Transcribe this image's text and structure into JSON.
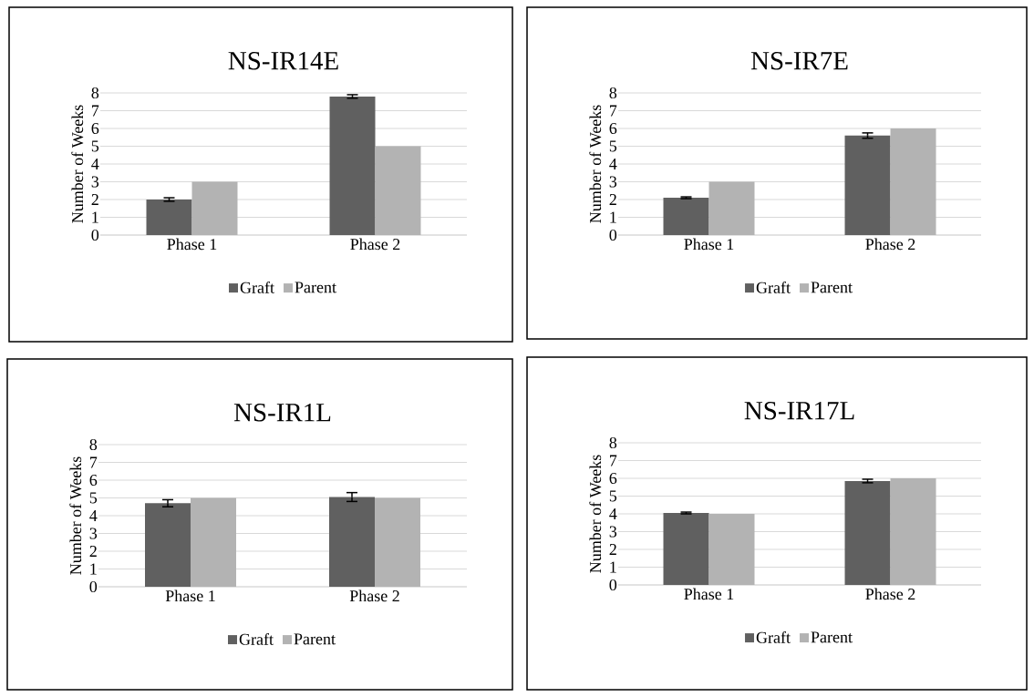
{
  "chart_data": [
    {
      "type": "bar",
      "title": "NS-IR14E",
      "ylabel": "Number of Weeks",
      "categories": [
        "Phase 1",
        "Phase 2"
      ],
      "ylim": [
        0,
        8
      ],
      "yticks": [
        0,
        1,
        2,
        3,
        4,
        5,
        6,
        7,
        8
      ],
      "grid": "y",
      "legend": "bottom",
      "series": [
        {
          "name": "Graft",
          "color": "#606060",
          "values": [
            2.0,
            7.8
          ],
          "errors": [
            0.1,
            0.1
          ]
        },
        {
          "name": "Parent",
          "color": "#b3b3b3",
          "values": [
            3.0,
            5.0
          ],
          "errors": [
            null,
            null
          ]
        }
      ]
    },
    {
      "type": "bar",
      "title": "NS-IR7E",
      "ylabel": "Number of Weeks",
      "categories": [
        "Phase 1",
        "Phase 2"
      ],
      "ylim": [
        0,
        8
      ],
      "yticks": [
        0,
        1,
        2,
        3,
        4,
        5,
        6,
        7,
        8
      ],
      "grid": "y",
      "legend": "bottom",
      "series": [
        {
          "name": "Graft",
          "color": "#606060",
          "values": [
            2.1,
            5.6
          ],
          "errors": [
            0.05,
            0.15
          ]
        },
        {
          "name": "Parent",
          "color": "#b3b3b3",
          "values": [
            3.0,
            6.0
          ],
          "errors": [
            null,
            null
          ]
        }
      ]
    },
    {
      "type": "bar",
      "title": "NS-IR1L",
      "ylabel": "Number of Weeks",
      "categories": [
        "Phase 1",
        "Phase 2"
      ],
      "ylim": [
        0,
        8
      ],
      "yticks": [
        0,
        1,
        2,
        3,
        4,
        5,
        6,
        7,
        8
      ],
      "grid": "y",
      "legend": "bottom",
      "series": [
        {
          "name": "Graft",
          "color": "#606060",
          "values": [
            4.7,
            5.05
          ],
          "errors": [
            0.2,
            0.25
          ]
        },
        {
          "name": "Parent",
          "color": "#b3b3b3",
          "values": [
            5.0,
            5.0
          ],
          "errors": [
            null,
            null
          ]
        }
      ]
    },
    {
      "type": "bar",
      "title": "NS-IR17L",
      "ylabel": "Number of Weeks",
      "categories": [
        "Phase 1",
        "Phase 2"
      ],
      "ylim": [
        0,
        8
      ],
      "yticks": [
        0,
        1,
        2,
        3,
        4,
        5,
        6,
        7,
        8
      ],
      "grid": "y",
      "legend": "bottom",
      "series": [
        {
          "name": "Graft",
          "color": "#606060",
          "values": [
            4.05,
            5.85
          ],
          "errors": [
            0.05,
            0.1
          ]
        },
        {
          "name": "Parent",
          "color": "#b3b3b3",
          "values": [
            4.0,
            6.0
          ],
          "errors": [
            null,
            null
          ]
        }
      ]
    }
  ]
}
